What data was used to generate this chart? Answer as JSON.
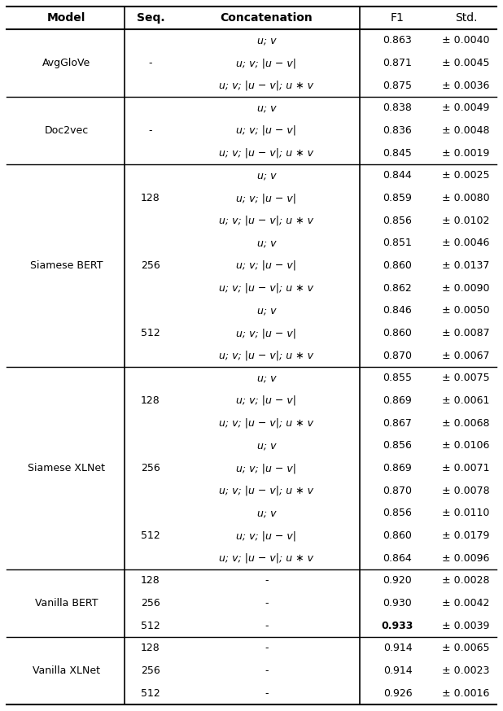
{
  "col_headers": [
    "Model",
    "Seq.",
    "Concatenation",
    "F1",
    "Std."
  ],
  "rows": [
    {
      "model": "AvgGloVe",
      "seq": "-",
      "concat": "u; v",
      "f1": "0.863",
      "std": "± 0.0040",
      "bold_f1": false
    },
    {
      "model": "",
      "seq": "",
      "concat": "u; v; |u − v|",
      "f1": "0.871",
      "std": "± 0.0045",
      "bold_f1": false
    },
    {
      "model": "",
      "seq": "",
      "concat": "u; v; |u − v|; u ∗ v",
      "f1": "0.875",
      "std": "± 0.0036",
      "bold_f1": false
    },
    {
      "model": "Doc2vec",
      "seq": "-",
      "concat": "u; v",
      "f1": "0.838",
      "std": "± 0.0049",
      "bold_f1": false
    },
    {
      "model": "",
      "seq": "",
      "concat": "u; v; |u − v|",
      "f1": "0.836",
      "std": "± 0.0048",
      "bold_f1": false
    },
    {
      "model": "",
      "seq": "",
      "concat": "u; v; |u − v|; u ∗ v",
      "f1": "0.845",
      "std": "± 0.0019",
      "bold_f1": false
    },
    {
      "model": "Siamese BERT",
      "seq": "128",
      "concat": "u; v",
      "f1": "0.844",
      "std": "± 0.0025",
      "bold_f1": false
    },
    {
      "model": "",
      "seq": "",
      "concat": "u; v; |u − v|",
      "f1": "0.859",
      "std": "± 0.0080",
      "bold_f1": false
    },
    {
      "model": "",
      "seq": "",
      "concat": "u; v; |u − v|; u ∗ v",
      "f1": "0.856",
      "std": "± 0.0102",
      "bold_f1": false
    },
    {
      "model": "",
      "seq": "256",
      "concat": "u; v",
      "f1": "0.851",
      "std": "± 0.0046",
      "bold_f1": false
    },
    {
      "model": "",
      "seq": "",
      "concat": "u; v; |u − v|",
      "f1": "0.860",
      "std": "± 0.0137",
      "bold_f1": false
    },
    {
      "model": "",
      "seq": "",
      "concat": "u; v; |u − v|; u ∗ v",
      "f1": "0.862",
      "std": "± 0.0090",
      "bold_f1": false
    },
    {
      "model": "",
      "seq": "512",
      "concat": "u; v",
      "f1": "0.846",
      "std": "± 0.0050",
      "bold_f1": false
    },
    {
      "model": "",
      "seq": "",
      "concat": "u; v; |u − v|",
      "f1": "0.860",
      "std": "± 0.0087",
      "bold_f1": false
    },
    {
      "model": "",
      "seq": "",
      "concat": "u; v; |u − v|; u ∗ v",
      "f1": "0.870",
      "std": "± 0.0067",
      "bold_f1": false
    },
    {
      "model": "Siamese XLNet",
      "seq": "128",
      "concat": "u; v",
      "f1": "0.855",
      "std": "± 0.0075",
      "bold_f1": false
    },
    {
      "model": "",
      "seq": "",
      "concat": "u; v; |u − v|",
      "f1": "0.869",
      "std": "± 0.0061",
      "bold_f1": false
    },
    {
      "model": "",
      "seq": "",
      "concat": "u; v; |u − v|; u ∗ v",
      "f1": "0.867",
      "std": "± 0.0068",
      "bold_f1": false
    },
    {
      "model": "",
      "seq": "256",
      "concat": "u; v",
      "f1": "0.856",
      "std": "± 0.0106",
      "bold_f1": false
    },
    {
      "model": "",
      "seq": "",
      "concat": "u; v; |u − v|",
      "f1": "0.869",
      "std": "± 0.0071",
      "bold_f1": false
    },
    {
      "model": "",
      "seq": "",
      "concat": "u; v; |u − v|; u ∗ v",
      "f1": "0.870",
      "std": "± 0.0078",
      "bold_f1": false
    },
    {
      "model": "",
      "seq": "512",
      "concat": "u; v",
      "f1": "0.856",
      "std": "± 0.0110",
      "bold_f1": false
    },
    {
      "model": "",
      "seq": "",
      "concat": "u; v; |u − v|",
      "f1": "0.860",
      "std": "± 0.0179",
      "bold_f1": false
    },
    {
      "model": "",
      "seq": "",
      "concat": "u; v; |u − v|; u ∗ v",
      "f1": "0.864",
      "std": "± 0.0096",
      "bold_f1": false
    },
    {
      "model": "Vanilla BERT",
      "seq": "128",
      "concat": "-",
      "f1": "0.920",
      "std": "± 0.0028",
      "bold_f1": false
    },
    {
      "model": "",
      "seq": "256",
      "concat": "-",
      "f1": "0.930",
      "std": "± 0.0042",
      "bold_f1": false
    },
    {
      "model": "",
      "seq": "512",
      "concat": "-",
      "f1": "0.933",
      "std": "± 0.0039",
      "bold_f1": true
    },
    {
      "model": "Vanilla XLNet",
      "seq": "128",
      "concat": "-",
      "f1": "0.914",
      "std": "± 0.0065",
      "bold_f1": false
    },
    {
      "model": "",
      "seq": "256",
      "concat": "-",
      "f1": "0.914",
      "std": "± 0.0023",
      "bold_f1": false
    },
    {
      "model": "",
      "seq": "512",
      "concat": "-",
      "f1": "0.926",
      "std": "± 0.0016",
      "bold_f1": false
    }
  ],
  "groups": [
    {
      "name": "AvgGloVe",
      "start": 0,
      "end": 2,
      "seq_mid_row": 0
    },
    {
      "name": "Doc2vec",
      "start": 3,
      "end": 5,
      "seq_mid_row": 3
    },
    {
      "name": "Siamese BERT",
      "start": 6,
      "end": 14,
      "seq_mid_row": 10
    },
    {
      "name": "Siamese XLNet",
      "start": 15,
      "end": 23,
      "seq_mid_row": 19
    },
    {
      "name": "Vanilla BERT",
      "start": 24,
      "end": 26,
      "seq_mid_row": 25
    },
    {
      "name": "Vanilla XLNet",
      "start": 27,
      "end": 29,
      "seq_mid_row": 28
    }
  ],
  "group_dividers_after": [
    2,
    5,
    14,
    23,
    26
  ],
  "italic_rows": [
    0,
    1,
    2,
    3,
    4,
    5,
    6,
    7,
    8,
    9,
    10,
    11,
    12,
    13,
    14,
    15,
    16,
    17,
    18,
    19,
    20,
    21,
    22,
    23
  ],
  "background_color": "#ffffff",
  "line_color": "#000000",
  "font_size": 9.0,
  "header_font_size": 10.0
}
